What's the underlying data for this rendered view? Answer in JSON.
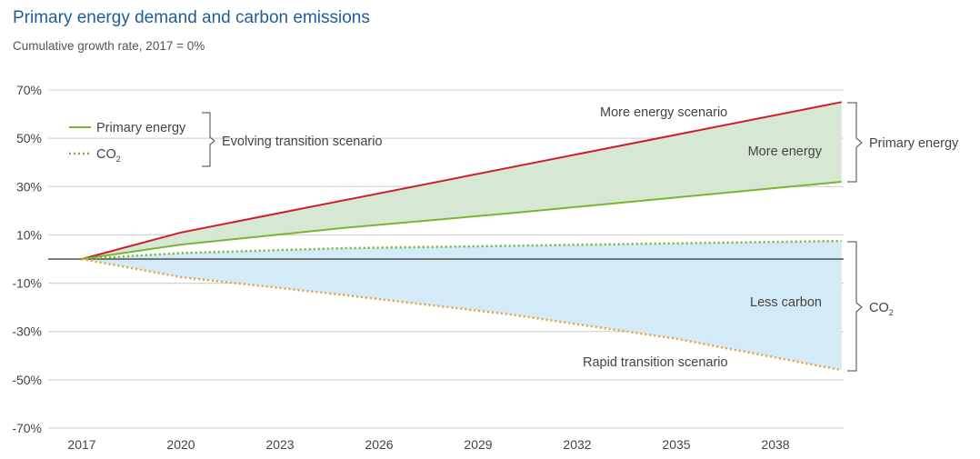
{
  "title": "Primary energy demand and carbon emissions",
  "subtitle": "Cumulative growth rate, 2017 = 0%",
  "colors": {
    "more_energy_line": "#cc1f2c",
    "primary_energy_line": "#7ab532",
    "co2_dotted": "#7ab532",
    "rapid_transition_dotted": "#e8a23a",
    "more_energy_fill": "#d6e8d4",
    "less_carbon_fill": "#d3eaf7",
    "zero_line": "#333333",
    "grid": "#cccccc"
  },
  "legend": {
    "primary_energy": "Primary energy",
    "co2": "CO",
    "co2_sub": "2",
    "group_label": "Evolving transition scenario"
  },
  "annotations": {
    "more_energy_scenario": "More energy scenario",
    "more_energy": "More energy",
    "less_carbon": "Less carbon",
    "rapid_transition_scenario": "Rapid transition scenario",
    "bracket_primary_energy": "Primary energy",
    "bracket_co2": "CO",
    "bracket_co2_sub": "2"
  },
  "chart_data": {
    "type": "line",
    "title": "Primary energy demand and carbon emissions",
    "subtitle": "Cumulative growth rate, 2017 = 0%",
    "xlabel": "",
    "ylabel": "",
    "x_ticks": [
      "2017",
      "2020",
      "2023",
      "2026",
      "2029",
      "2032",
      "2035",
      "2038"
    ],
    "y_ticks": [
      "70%",
      "50%",
      "30%",
      "10%",
      "-10%",
      "-30%",
      "-50%",
      "-70%"
    ],
    "ylim": [
      -70,
      70
    ],
    "xlim": [
      2017,
      2040
    ],
    "grid": true,
    "series": [
      {
        "name": "More energy scenario – Primary energy",
        "style": "solid",
        "x": [
          2017,
          2020,
          2040
        ],
        "values": [
          0,
          11,
          65
        ]
      },
      {
        "name": "Evolving transition scenario – Primary energy",
        "style": "solid",
        "x": [
          2017,
          2020,
          2025,
          2030,
          2035,
          2040
        ],
        "values": [
          0,
          6,
          13,
          19,
          25.5,
          32
        ]
      },
      {
        "name": "Evolving transition scenario – CO2",
        "style": "dotted",
        "x": [
          2017,
          2020,
          2025,
          2030,
          2035,
          2040
        ],
        "values": [
          0,
          2.5,
          4.5,
          5.5,
          6.5,
          7.5
        ]
      },
      {
        "name": "Rapid transition scenario – CO2",
        "style": "dotted",
        "x": [
          2017,
          2020,
          2025,
          2030,
          2035,
          2040
        ],
        "values": [
          0,
          -7.5,
          -15,
          -23,
          -33,
          -46
        ]
      }
    ],
    "shaded_areas": [
      {
        "name": "More energy",
        "between": [
          "More energy scenario – Primary energy",
          "Evolving transition scenario – Primary energy"
        ]
      },
      {
        "name": "Less carbon",
        "between": [
          "Evolving transition scenario – CO2",
          "Rapid transition scenario – CO2"
        ]
      }
    ]
  }
}
